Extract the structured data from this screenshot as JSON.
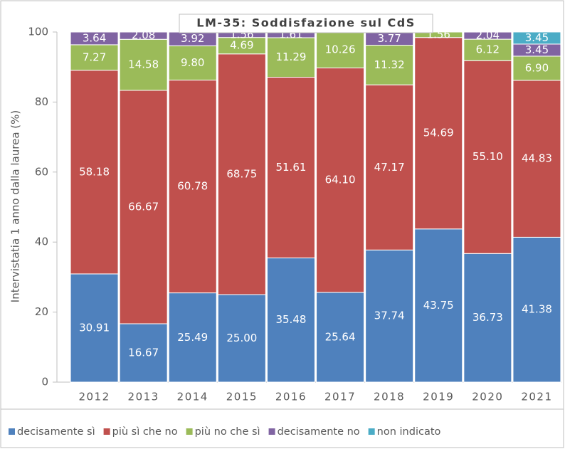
{
  "chart_data": {
    "type": "stacked_bar",
    "title": "LM-35: Soddisfazione sul CdS",
    "y_label": "Intervistatia 1 anno dalla laurea (%)",
    "categories": [
      "2012",
      "2013",
      "2014",
      "2015",
      "2016",
      "2017",
      "2018",
      "2019",
      "2020",
      "2021"
    ],
    "series": [
      {
        "name": "decisamente sì",
        "color": "#4f81bd",
        "values": [
          30.91,
          16.67,
          25.49,
          25.0,
          35.48,
          25.64,
          37.74,
          43.75,
          36.73,
          41.38
        ],
        "value_labels": [
          "30.91",
          "16.67",
          "25.49",
          "25.00",
          "35.48",
          "25.64",
          "37.74",
          "43.75",
          "36.73",
          "41.38"
        ]
      },
      {
        "name": "più sì che no",
        "color": "#c0504d",
        "values": [
          58.18,
          66.67,
          60.78,
          68.75,
          51.61,
          64.1,
          47.17,
          54.69,
          55.1,
          44.83
        ],
        "value_labels": [
          "58.18",
          "66.67",
          "60.78",
          "68.75",
          "51.61",
          "64.10",
          "47.17",
          "54.69",
          "55.10",
          "44.83"
        ]
      },
      {
        "name": "più no che sì",
        "color": "#9bbb59",
        "values": [
          7.27,
          14.58,
          9.8,
          4.69,
          11.29,
          10.26,
          11.32,
          1.56,
          6.12,
          6.9
        ],
        "value_labels": [
          "7.27",
          "14.58",
          "9.80",
          "4.69",
          "11.29",
          "10.26",
          "11.32",
          "1.56",
          "6.12",
          "6.90"
        ]
      },
      {
        "name": "decisamente no",
        "color": "#8064a2",
        "values": [
          3.64,
          2.08,
          3.92,
          1.56,
          1.61,
          0,
          3.77,
          0,
          2.04,
          3.45
        ],
        "value_labels": [
          "3.64",
          "2.08",
          "3.92",
          "1.56",
          "1.61",
          null,
          "3.77",
          null,
          "2.04",
          "3.45"
        ]
      },
      {
        "name": "non indicato",
        "color": "#4bacc6",
        "values": [
          0,
          0,
          0,
          0,
          0,
          0,
          0,
          0,
          0,
          3.45
        ],
        "value_labels": [
          null,
          null,
          null,
          null,
          null,
          null,
          null,
          null,
          null,
          "3.45"
        ]
      }
    ],
    "ylim": [
      0,
      100
    ],
    "yticks": [
      0,
      20,
      40,
      60,
      80,
      100
    ],
    "legend": "bottom"
  }
}
